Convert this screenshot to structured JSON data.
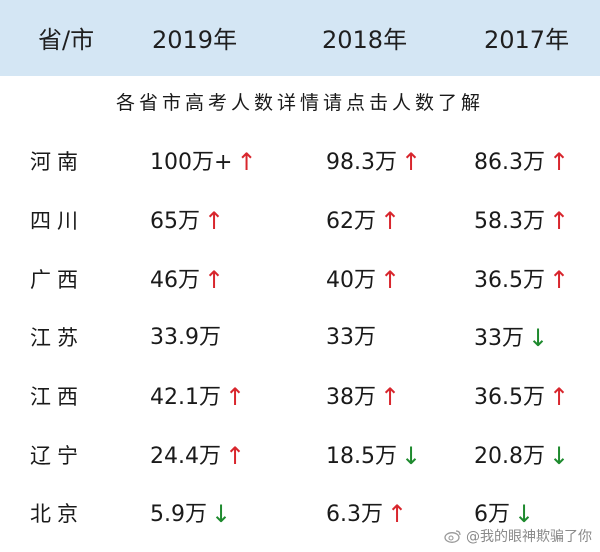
{
  "header": {
    "col_province": "省/市",
    "col_2019": "2019年",
    "col_2018": "2018年",
    "col_2017": "2017年"
  },
  "subtitle": "各省市高考人数详情请点击人数了解",
  "rows": [
    {
      "province": "河南",
      "v2019": "100万+",
      "a2019": "↑",
      "v2018": "98.3万",
      "a2018": "↑",
      "v2017": "86.3万",
      "a2017": "↑"
    },
    {
      "province": "四川",
      "v2019": "65万",
      "a2019": "↑",
      "v2018": "62万",
      "a2018": "↑",
      "v2017": "58.3万",
      "a2017": "↑"
    },
    {
      "province": "广西",
      "v2019": "46万",
      "a2019": "↑",
      "v2018": "40万",
      "a2018": "↑",
      "v2017": "36.5万",
      "a2017": "↑"
    },
    {
      "province": "江苏",
      "v2019": "33.9万",
      "a2019": "",
      "v2018": "33万",
      "a2018": "",
      "v2017": "33万",
      "a2017": "↓"
    },
    {
      "province": "江西",
      "v2019": "42.1万",
      "a2019": "↑",
      "v2018": "38万",
      "a2018": "↑",
      "v2017": "36.5万",
      "a2017": "↑"
    },
    {
      "province": "辽宁",
      "v2019": "24.4万",
      "a2019": "↑",
      "v2018": "18.5万",
      "a2018": "↓",
      "v2017": "20.8万",
      "a2017": "↓"
    },
    {
      "province": "北京",
      "v2019": "5.9万",
      "a2019": "↓",
      "v2018": "6.3万",
      "a2018": "↑",
      "v2017": "6万",
      "a2017": "↓"
    }
  ],
  "colors": {
    "up": "#d8262d",
    "down": "#1e8a2e",
    "header_bg": "#d4e6f4"
  },
  "watermark": "@我的眼神欺骗了你"
}
